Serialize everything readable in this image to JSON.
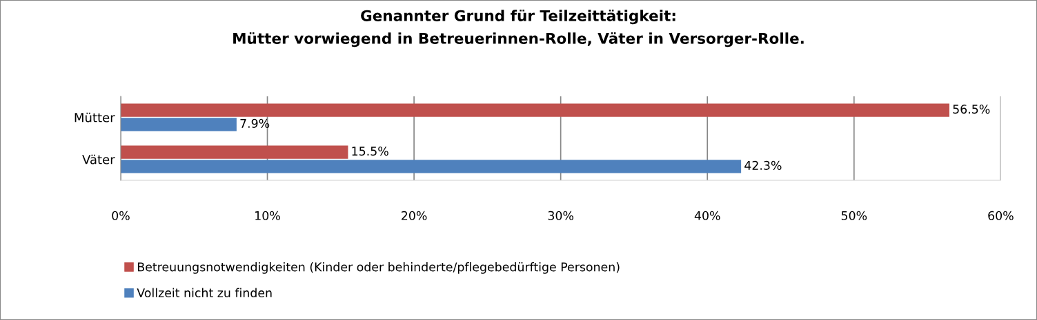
{
  "chart_data": {
    "type": "bar",
    "orientation": "horizontal",
    "title": "Genannter Grund für Teilzeittätigkeit:\nMütter vorwiegend in Betreuerinnen-Rolle, Väter in Versorger-Rolle.",
    "categories": [
      "Mütter",
      "Väter"
    ],
    "series": [
      {
        "name": "Betreuungsnotwendigkeiten (Kinder oder behinderte/pflegebedürftige Personen)",
        "color": "#c0504d",
        "values": [
          56.5,
          15.5
        ],
        "value_labels": [
          "56.5%",
          "15.5%"
        ]
      },
      {
        "name": "Vollzeit nicht zu finden",
        "color": "#4f81bd",
        "values": [
          7.9,
          42.3
        ],
        "value_labels": [
          "7.9%",
          "42.3%"
        ]
      }
    ],
    "xlim": [
      0,
      60
    ],
    "xticks": [
      {
        "value": 0,
        "label": "0%"
      },
      {
        "value": 10,
        "label": "10%"
      },
      {
        "value": 20,
        "label": "20%"
      },
      {
        "value": 30,
        "label": "30%"
      },
      {
        "value": 40,
        "label": "40%"
      },
      {
        "value": 50,
        "label": "50%"
      },
      {
        "value": 60,
        "label": "60%"
      }
    ],
    "grid": "x",
    "legend": "bottom"
  }
}
